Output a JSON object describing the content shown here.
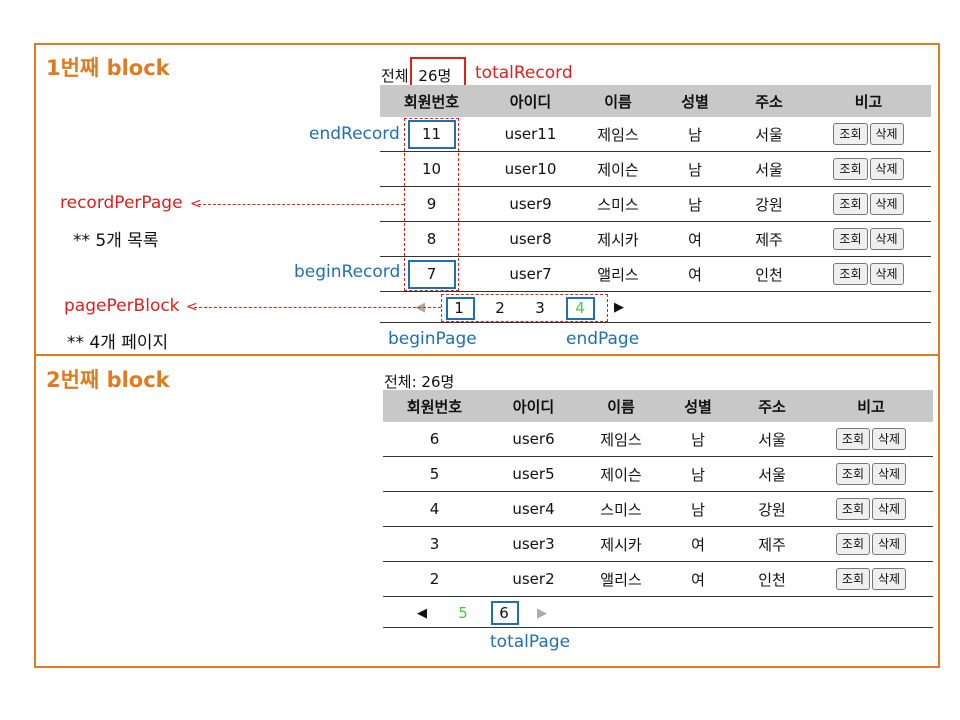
{
  "blocks": [
    {
      "title": "1번째 block",
      "total_label": "전체: 26명",
      "headers": [
        "회원번호",
        "아이디",
        "이름",
        "성별",
        "주소",
        "비고"
      ],
      "rows": [
        {
          "no": "11",
          "id": "user11",
          "name": "제임스",
          "gender": "남",
          "addr": "서울"
        },
        {
          "no": "10",
          "id": "user10",
          "name": "제이슨",
          "gender": "남",
          "addr": "서울"
        },
        {
          "no": "9",
          "id": "user9",
          "name": "스미스",
          "gender": "남",
          "addr": "강원"
        },
        {
          "no": "8",
          "id": "user8",
          "name": "제시카",
          "gender": "여",
          "addr": "제주"
        },
        {
          "no": "7",
          "id": "user7",
          "name": "앨리스",
          "gender": "여",
          "addr": "인천"
        }
      ],
      "pages": [
        "1",
        "2",
        "3",
        "4"
      ],
      "prev_arrow": "◀",
      "next_arrow": "▶"
    },
    {
      "title": "2번째 block",
      "total_label": "전체: 26명",
      "headers": [
        "회원번호",
        "아이디",
        "이름",
        "성별",
        "주소",
        "비고"
      ],
      "rows": [
        {
          "no": "6",
          "id": "user6",
          "name": "제임스",
          "gender": "남",
          "addr": "서울"
        },
        {
          "no": "5",
          "id": "user5",
          "name": "제이슨",
          "gender": "남",
          "addr": "서울"
        },
        {
          "no": "4",
          "id": "user4",
          "name": "스미스",
          "gender": "남",
          "addr": "강원"
        },
        {
          "no": "3",
          "id": "user3",
          "name": "제시카",
          "gender": "여",
          "addr": "제주"
        },
        {
          "no": "2",
          "id": "user2",
          "name": "앨리스",
          "gender": "여",
          "addr": "인천"
        }
      ],
      "pages": [
        "5",
        "6"
      ],
      "prev_arrow": "◀",
      "next_arrow": "▶"
    }
  ],
  "buttons": {
    "view": "조회",
    "delete": "삭제"
  },
  "annotations": {
    "total_record": "totalRecord",
    "end_record": "endRecord",
    "record_per_page": "recordPerPage",
    "record_note": "** 5개 목록",
    "begin_record": "beginRecord",
    "page_per_block": "pagePerBlock",
    "page_note": "** 4개 페이지",
    "begin_page": "beginPage",
    "end_page": "endPage",
    "total_page": "totalPage"
  },
  "colors": {
    "block_border": "#e07b1e",
    "annotation_red": "#e0201c",
    "annotation_blue": "#1f6fb4",
    "highlight_green": "#3fcf3f"
  }
}
